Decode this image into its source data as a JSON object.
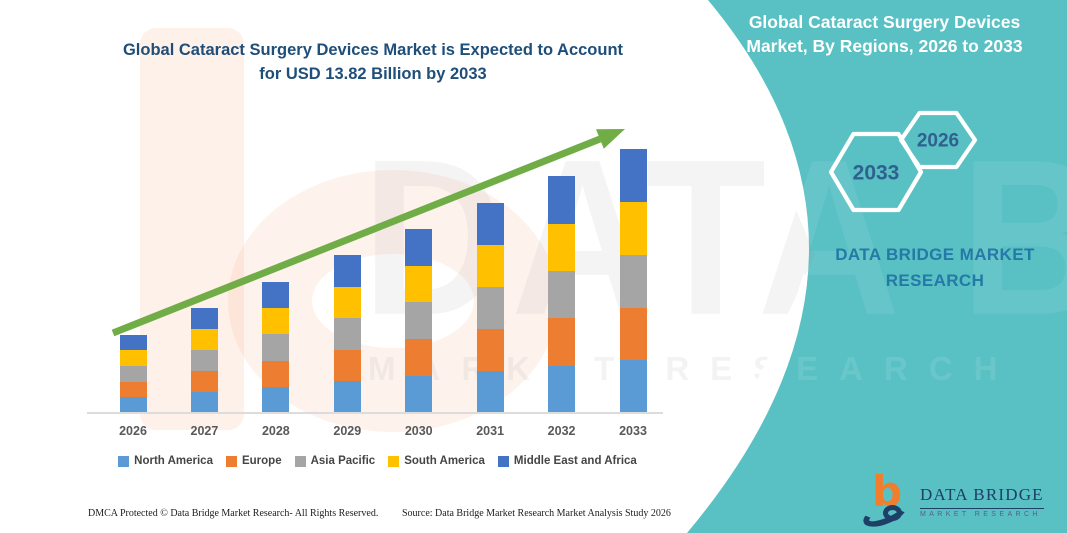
{
  "title": {
    "line1": "Global Cataract Surgery Devices Market is Expected to Account",
    "line2": "for USD 13.82 Billion by 2033"
  },
  "right_panel": {
    "heading_line1": "Global Cataract Surgery Devices",
    "heading_line2": "Market, By Regions, 2026 to 2033",
    "hexagons": [
      {
        "label": "2033"
      },
      {
        "label": "2026"
      }
    ],
    "brand_line1": "DATA BRIDGE MARKET",
    "brand_line2": "RESEARCH"
  },
  "chart_data": {
    "type": "bar",
    "stacked": true,
    "title": "Global Cataract Surgery Devices Market is Expected to Account for USD 13.82 Billion by 2033",
    "unit": "USD Billion",
    "categories": [
      "2026",
      "2027",
      "2028",
      "2029",
      "2030",
      "2031",
      "2032",
      "2033"
    ],
    "series": [
      {
        "name": "North America",
        "color": "#5B9BD5",
        "values": [
          0.82,
          1.1,
          1.37,
          1.65,
          1.93,
          2.2,
          2.48,
          2.76
        ]
      },
      {
        "name": "Europe",
        "color": "#ED7D31",
        "values": [
          0.82,
          1.1,
          1.37,
          1.65,
          1.93,
          2.2,
          2.48,
          2.76
        ]
      },
      {
        "name": "Asia Pacific",
        "color": "#A5A5A5",
        "values": [
          0.82,
          1.1,
          1.37,
          1.65,
          1.93,
          2.2,
          2.48,
          2.76
        ]
      },
      {
        "name": "South America",
        "color": "#FFC000",
        "values": [
          0.82,
          1.1,
          1.37,
          1.65,
          1.93,
          2.2,
          2.48,
          2.76
        ]
      },
      {
        "name": "Middle East and Africa",
        "color": "#4472C4",
        "values": [
          0.82,
          1.1,
          1.37,
          1.65,
          1.93,
          2.2,
          2.48,
          2.76
        ]
      }
    ],
    "totals_estimated_usd_billion": [
      4.1,
      5.5,
      6.9,
      8.3,
      9.7,
      11.0,
      12.4,
      13.82
    ],
    "final_value_label": "USD 13.82 Billion by 2033",
    "trend_arrow": {
      "color": "#70AD47",
      "from_year": "2026",
      "to_year": "2033"
    },
    "legend_position": "bottom",
    "grid": false,
    "axis": {
      "baseline_color": "#DCDCDC",
      "tick_label_color": "#595959"
    }
  },
  "footer": {
    "left": "DMCA Protected © Data Bridge Market Research-  All Rights Reserved.",
    "right": "Source: Data Bridge Market Research  Market Analysis Study 2026"
  },
  "logo": {
    "line1": "DATA BRIDGE",
    "line2": "MARKET RESEARCH"
  },
  "watermark": {
    "big": "DATA BRIDGE",
    "small": "MARKET RESEARCH"
  },
  "colors": {
    "teal_panel": "#59C1C4",
    "title_blue": "#1F4E79",
    "hexagon_year_blue": "#2F618F",
    "brand_blue": "#2579A6",
    "arrow_green": "#70AD47",
    "logo_orange": "#F07E2D",
    "logo_navy": "#1E3F66"
  }
}
